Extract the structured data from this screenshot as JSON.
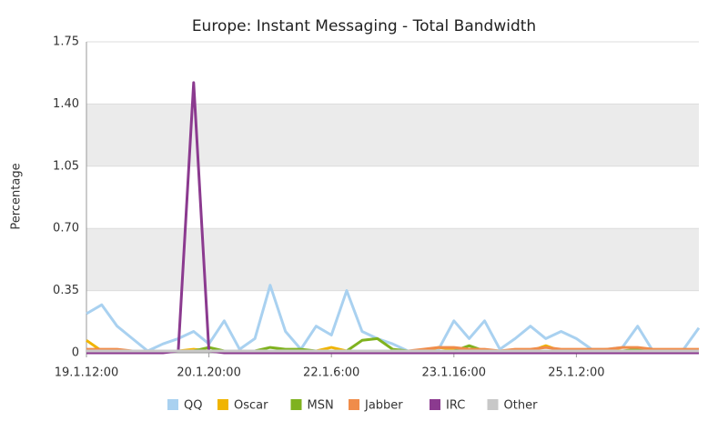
{
  "chart_data": {
    "type": "line",
    "title": "Europe: Instant Messaging - Total Bandwidth",
    "y_label": "Percentage",
    "categories": [
      "19.1.12:00",
      null,
      null,
      null,
      null,
      null,
      null,
      null,
      "20.1.20:00",
      null,
      null,
      null,
      null,
      null,
      null,
      null,
      "22.1.6:00",
      null,
      null,
      null,
      null,
      null,
      null,
      null,
      "23.1.16:00",
      null,
      null,
      null,
      null,
      null,
      null,
      null,
      "25.1.2:00",
      null,
      null,
      null,
      null,
      null,
      null,
      null,
      null
    ],
    "ylim": [
      0,
      1.75
    ],
    "yticks": [
      0,
      0.35,
      {
        "value": 0.7,
        "label": "0.70"
      },
      1.05,
      {
        "value": 1.4,
        "label": "1.40"
      },
      1.75
    ],
    "grid": true,
    "legend": "bottom",
    "series": [
      {
        "name": "QQ",
        "color": "#a9d1f0",
        "values": [
          0.22,
          0.27,
          0.15,
          0.08,
          0.01,
          0.05,
          0.08,
          0.12,
          0.05,
          0.18,
          0.02,
          0.08,
          0.38,
          0.12,
          0.02,
          0.15,
          0.1,
          0.35,
          0.12,
          0.08,
          0.05,
          0.01,
          0.01,
          0.02,
          0.18,
          0.08,
          0.18,
          0.02,
          0.08,
          0.15,
          0.08,
          0.12,
          0.08,
          0.02,
          0.02,
          0.03,
          0.15,
          0.01,
          0.01,
          0.02,
          0.14
        ]
      },
      {
        "name": "Oscar",
        "color": "#f0b400",
        "values": [
          0.07,
          0.01,
          0.01,
          0.01,
          0.01,
          0.01,
          0.01,
          0.02,
          0.01,
          0.01,
          0.01,
          0.01,
          0.01,
          0.01,
          0.01,
          0.01,
          0.03,
          0.01,
          0.01,
          0.01,
          0.01,
          0.01,
          0.01,
          0.03,
          0.02,
          0.02,
          0.01,
          0.01,
          0.01,
          0.01,
          0.04,
          0.01,
          0.01,
          0.01,
          0.02,
          0.01,
          0.01,
          0.01,
          0.01,
          0.01,
          0.01
        ]
      },
      {
        "name": "MSN",
        "color": "#7fb21f",
        "values": [
          0.01,
          0.01,
          0.01,
          0.01,
          0.01,
          0.01,
          0.01,
          0.01,
          0.03,
          0.01,
          0.01,
          0.01,
          0.03,
          0.02,
          0.02,
          0.01,
          0.01,
          0.01,
          0.07,
          0.08,
          0.02,
          0.01,
          0.01,
          0.01,
          0.01,
          0.04,
          0.01,
          0.01,
          0.01,
          0.01,
          0.01,
          0.01,
          0.01,
          0.01,
          0.01,
          0.01,
          0.02,
          0.01,
          0.01,
          0.01,
          0.01
        ]
      },
      {
        "name": "Jabber",
        "color": "#f08c4a",
        "values": [
          0.02,
          0.02,
          0.02,
          0.01,
          0.01,
          0.01,
          0.01,
          0.01,
          0.01,
          0.01,
          0.01,
          0.01,
          0.01,
          0.01,
          0.01,
          0.01,
          0.01,
          0.01,
          0.01,
          0.01,
          0.01,
          0.01,
          0.02,
          0.03,
          0.03,
          0.02,
          0.02,
          0.01,
          0.02,
          0.02,
          0.03,
          0.02,
          0.02,
          0.02,
          0.02,
          0.03,
          0.03,
          0.02,
          0.02,
          0.02,
          0.02
        ]
      },
      {
        "name": "IRC",
        "color": "#8b3a8f",
        "values": [
          0,
          0,
          0,
          0,
          0,
          0,
          0.01,
          1.52,
          0.01,
          0,
          0,
          0,
          0,
          0,
          0,
          0,
          0,
          0,
          0,
          0,
          0,
          0,
          0,
          0,
          0,
          0,
          0,
          0,
          0,
          0,
          0,
          0,
          0,
          0,
          0,
          0,
          0,
          0,
          0,
          0,
          0
        ]
      },
      {
        "name": "Other",
        "color": "#c8c8c8",
        "values": [
          0.01,
          0.01,
          0.01,
          0.01,
          0.01,
          0.01,
          0.01,
          0.01,
          0.01,
          0.01,
          0.01,
          0.01,
          0.01,
          0.01,
          0.01,
          0.01,
          0.01,
          0.01,
          0.01,
          0.01,
          0.01,
          0.01,
          0.01,
          0.01,
          0.01,
          0.01,
          0.01,
          0.01,
          0.01,
          0.01,
          0.01,
          0.01,
          0.01,
          0.01,
          0.01,
          0.01,
          0.01,
          0.01,
          0.01,
          0.01,
          0.01
        ]
      }
    ]
  }
}
